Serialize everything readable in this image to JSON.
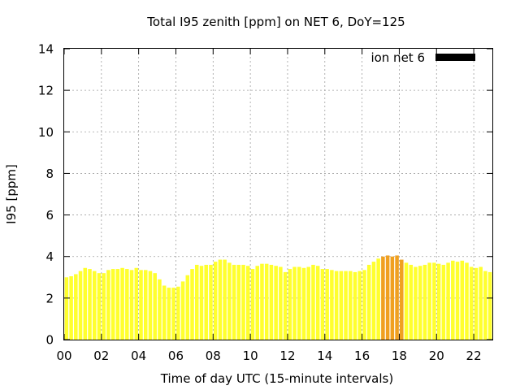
{
  "chart_data": {
    "type": "bar",
    "title": "Total I95 zenith [ppm] on NET 6, DoY=125",
    "xlabel": "Time of day UTC (15-minute intervals)",
    "ylabel": "I95 [ppm]",
    "ylim": [
      0,
      14
    ],
    "xlim": [
      0,
      23
    ],
    "yticks": [
      "0",
      "2",
      "4",
      "6",
      "8",
      "10",
      "12",
      "14"
    ],
    "xticks": [
      "00",
      "02",
      "04",
      "06",
      "08",
      "10",
      "12",
      "14",
      "16",
      "18",
      "20",
      "22"
    ],
    "grid": true,
    "legend_position": "top-right",
    "series": [
      {
        "name": "ion net 6",
        "legend_color": "#000000",
        "bar_color": "#ffff2e",
        "highlight_color": "#f0a020",
        "highlight_indices": [
          68,
          69,
          70,
          71,
          72
        ],
        "bar_interval_hours": 0.25,
        "values": [
          3.0,
          3.05,
          3.15,
          3.3,
          3.45,
          3.4,
          3.3,
          3.2,
          3.2,
          3.35,
          3.4,
          3.4,
          3.45,
          3.4,
          3.35,
          3.45,
          3.35,
          3.35,
          3.3,
          3.2,
          2.9,
          2.6,
          2.5,
          2.5,
          2.55,
          2.8,
          3.1,
          3.4,
          3.6,
          3.55,
          3.6,
          3.6,
          3.75,
          3.85,
          3.85,
          3.7,
          3.6,
          3.6,
          3.6,
          3.55,
          3.4,
          3.55,
          3.65,
          3.65,
          3.6,
          3.55,
          3.5,
          3.25,
          3.4,
          3.5,
          3.5,
          3.45,
          3.5,
          3.6,
          3.55,
          3.4,
          3.4,
          3.35,
          3.3,
          3.3,
          3.3,
          3.3,
          3.25,
          3.3,
          3.35,
          3.6,
          3.75,
          3.9,
          4.0,
          4.05,
          4.0,
          4.05,
          3.85,
          3.7,
          3.6,
          3.5,
          3.55,
          3.6,
          3.7,
          3.7,
          3.65,
          3.6,
          3.7,
          3.8,
          3.75,
          3.8,
          3.7,
          3.5,
          3.45,
          3.5,
          3.3,
          3.25
        ]
      }
    ]
  }
}
